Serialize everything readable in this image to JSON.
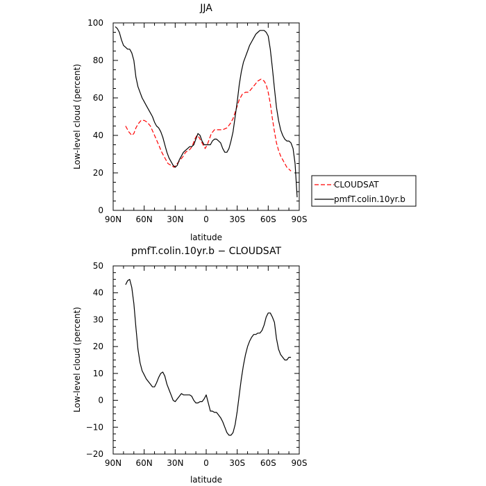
{
  "chart_data": [
    {
      "type": "line",
      "title": "JJA",
      "xlabel": "latitude",
      "ylabel": "Low-level cloud (percent)",
      "xlim": [
        90,
        -90
      ],
      "ylim": [
        0,
        100
      ],
      "xticks": [
        90,
        60,
        30,
        0,
        -30,
        -60,
        -90
      ],
      "xticklabels": [
        "90N",
        "60N",
        "30N",
        "0",
        "30S",
        "60S",
        "90S"
      ],
      "yticks": [
        0,
        20,
        40,
        60,
        80,
        100
      ],
      "yticklabels": [
        "0",
        "20",
        "40",
        "60",
        "80",
        "100"
      ],
      "legend": "right",
      "series": [
        {
          "name": "CLOUDSAT",
          "color": "#ff0000",
          "dash": "dashed",
          "x": [
            78,
            75,
            72,
            70,
            68,
            66,
            63,
            60,
            57,
            54,
            50,
            46,
            43,
            40,
            37,
            34,
            31,
            28,
            25,
            22,
            20,
            17,
            15,
            13,
            11,
            9,
            7,
            5,
            3,
            1,
            -1,
            -3,
            -5,
            -8,
            -10,
            -13,
            -16,
            -20,
            -23,
            -26,
            -29,
            -32,
            -35,
            -38,
            -41,
            -44,
            -47,
            -50,
            -53,
            -56,
            -58,
            -60,
            -62,
            -64,
            -66,
            -68,
            -70,
            -72,
            -74,
            -76,
            -78,
            -80,
            -82
          ],
          "y": [
            45,
            42,
            40,
            41,
            44,
            46,
            48,
            48,
            47,
            45,
            40,
            35,
            31,
            28,
            25,
            24,
            23,
            25,
            27,
            29,
            31,
            32,
            33,
            35,
            38,
            40,
            39,
            37,
            35,
            33,
            35,
            38,
            41,
            43,
            43,
            43,
            43,
            44,
            46,
            49,
            54,
            59,
            62,
            63,
            63,
            65,
            67,
            69,
            70,
            69,
            67,
            63,
            57,
            49,
            42,
            36,
            32,
            29,
            27,
            25,
            23,
            22,
            21
          ]
        },
        {
          "name": "pmfT.colin.10yr.b",
          "color": "#000000",
          "dash": "solid",
          "x": [
            88,
            86,
            84,
            82,
            80,
            78,
            76,
            74,
            72,
            70,
            68,
            66,
            64,
            62,
            60,
            58,
            56,
            54,
            52,
            50,
            48,
            46,
            44,
            42,
            40,
            38,
            36,
            34,
            32,
            30,
            28,
            26,
            24,
            22,
            20,
            18,
            16,
            14,
            12,
            10,
            8,
            6,
            4,
            2,
            0,
            -2,
            -4,
            -6,
            -8,
            -10,
            -12,
            -14,
            -16,
            -18,
            -20,
            -22,
            -24,
            -26,
            -28,
            -30,
            -32,
            -34,
            -36,
            -38,
            -40,
            -42,
            -44,
            -46,
            -48,
            -50,
            -52,
            -54,
            -56,
            -58,
            -60,
            -62,
            -64,
            -66,
            -68,
            -70,
            -72,
            -74,
            -76,
            -78,
            -80,
            -82,
            -84,
            -86,
            -88
          ],
          "y": [
            98,
            97,
            95,
            91,
            88,
            87,
            86,
            86,
            84,
            80,
            71,
            66,
            63,
            60,
            58,
            56,
            54,
            52,
            50,
            47,
            45,
            44,
            42,
            39,
            35,
            31,
            28,
            26,
            24,
            23,
            24,
            27,
            29,
            31,
            32,
            33,
            34,
            34,
            35,
            38,
            41,
            40,
            37,
            35,
            35,
            35,
            35,
            37,
            38,
            38,
            37,
            36,
            33,
            31,
            31,
            33,
            37,
            42,
            50,
            58,
            67,
            74,
            79,
            82,
            85,
            88,
            90,
            92,
            94,
            95,
            96,
            96,
            96,
            95,
            93,
            86,
            76,
            65,
            55,
            48,
            43,
            40,
            38,
            37,
            37,
            36,
            33,
            25,
            7
          ]
        }
      ]
    },
    {
      "type": "line",
      "title": "pmfT.colin.10yr.b − CLOUDSAT",
      "xlabel": "latitude",
      "ylabel": "Low-level cloud (percent)",
      "xlim": [
        90,
        -90
      ],
      "ylim": [
        -20,
        50
      ],
      "xticks": [
        90,
        60,
        30,
        0,
        -30,
        -60,
        -90
      ],
      "xticklabels": [
        "90N",
        "60N",
        "30N",
        "0",
        "30S",
        "60S",
        "90S"
      ],
      "yticks": [
        -20,
        -10,
        0,
        10,
        20,
        30,
        40,
        50
      ],
      "yticklabels": [
        "−20",
        "−10",
        "0",
        "10",
        "20",
        "30",
        "40",
        "50"
      ],
      "series": [
        {
          "color": "#000000",
          "dash": "solid",
          "x": [
            78,
            76,
            74,
            72,
            70,
            68,
            66,
            64,
            62,
            60,
            58,
            56,
            54,
            52,
            50,
            48,
            46,
            44,
            42,
            40,
            38,
            36,
            34,
            32,
            30,
            28,
            26,
            24,
            22,
            20,
            18,
            16,
            14,
            12,
            10,
            8,
            6,
            4,
            2,
            0,
            -2,
            -4,
            -6,
            -8,
            -10,
            -12,
            -14,
            -16,
            -18,
            -20,
            -22,
            -24,
            -26,
            -28,
            -30,
            -32,
            -34,
            -36,
            -38,
            -40,
            -42,
            -44,
            -46,
            -48,
            -50,
            -52,
            -54,
            -56,
            -58,
            -60,
            -62,
            -64,
            -66,
            -68,
            -70,
            -72,
            -74,
            -76,
            -78,
            -80,
            -82
          ],
          "y": [
            43,
            44.5,
            45,
            42,
            36,
            27,
            19,
            14,
            11,
            9.5,
            8,
            7,
            6,
            5,
            5,
            6.5,
            8.5,
            10,
            10.5,
            9,
            6,
            4,
            2,
            0,
            -0.5,
            0.5,
            1.5,
            2.5,
            2,
            2,
            2,
            2,
            1.5,
            0,
            -1,
            -1,
            -0.5,
            -0.5,
            0.5,
            2,
            -1,
            -4,
            -4,
            -4.5,
            -4.5,
            -5.5,
            -6.5,
            -8,
            -10,
            -12,
            -13,
            -13,
            -12,
            -9,
            -4,
            2,
            8,
            13,
            17,
            20,
            22,
            23.5,
            24.5,
            24.5,
            25,
            25,
            26,
            28,
            31,
            32.5,
            32.5,
            31,
            29,
            23,
            19,
            17,
            16,
            15,
            15,
            16,
            16
          ]
        }
      ]
    }
  ]
}
